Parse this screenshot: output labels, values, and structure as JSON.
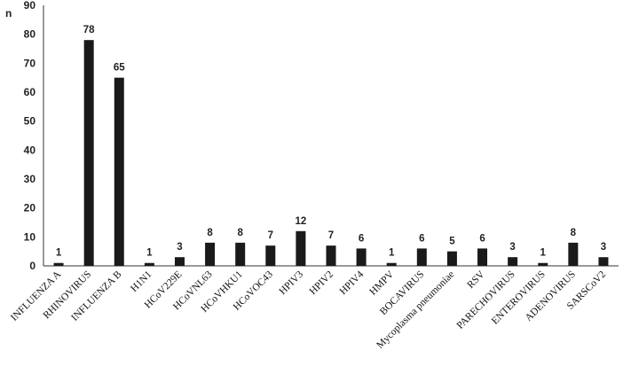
{
  "chart_data": {
    "type": "bar",
    "ylabel": "n",
    "ylim": [
      0,
      90
    ],
    "yticks": [
      0,
      10,
      20,
      30,
      40,
      50,
      60,
      70,
      80,
      90
    ],
    "grid": false,
    "bar_color": "#1a1a1a",
    "categories": [
      "INFLUENZA A",
      "RHINOVIRUS",
      "INFLUENZA B",
      "H1N1",
      "HCoV229E",
      "HCoVNL63",
      "HCoVHKU1",
      "HCoVOC43",
      "HPIV3",
      "HPIV2",
      "HPIV4",
      "HMPV",
      "BOCAVIRUS",
      "Mycoplasma pneumoniae",
      "RSV",
      "PARECHOVIRUS",
      "ENTEROVIRUS",
      "ADENOVIRUS",
      "SARSCoV2"
    ],
    "values": [
      1,
      78,
      65,
      1,
      3,
      8,
      8,
      7,
      12,
      7,
      6,
      1,
      6,
      5,
      6,
      3,
      1,
      8,
      3
    ]
  }
}
